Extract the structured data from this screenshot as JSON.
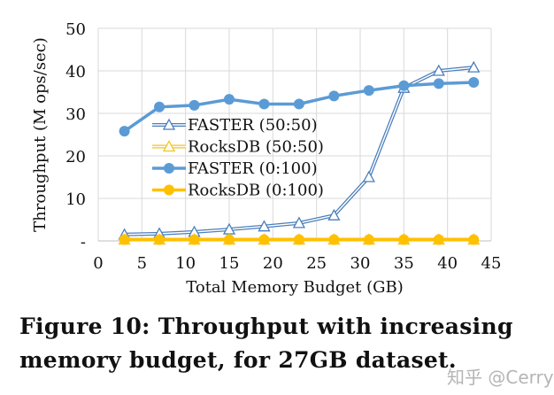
{
  "chart_data": {
    "type": "line",
    "title": "",
    "xlabel": "Total Memory Budget (GB)",
    "ylabel": "Throughput (M ops/sec)",
    "xlim": [
      0,
      45
    ],
    "ylim": [
      0,
      50
    ],
    "xticks": [
      "0",
      "5",
      "10",
      "15",
      "20",
      "25",
      "30",
      "35",
      "40",
      "45"
    ],
    "xtick_values": [
      0,
      5,
      10,
      15,
      20,
      25,
      30,
      35,
      40,
      45
    ],
    "yticks": [
      "-",
      "10",
      "20",
      "30",
      "40",
      "50"
    ],
    "ytick_values": [
      0,
      10,
      20,
      30,
      40,
      50
    ],
    "grid": true,
    "legend_position": "center-left",
    "x": [
      3,
      7,
      11,
      15,
      19,
      23,
      27,
      31,
      35,
      39,
      43
    ],
    "series": [
      {
        "name": "FASTER (50:50)",
        "color": "#4a7ebb",
        "marker": "triangle-open",
        "style": "double",
        "values": [
          1.5,
          1.7,
          2.1,
          2.7,
          3.4,
          4.2,
          6.0,
          15.0,
          36.0,
          40.0,
          40.8
        ]
      },
      {
        "name": "RocksDB (50:50)",
        "color": "#f5c518",
        "marker": "triangle-open",
        "style": "double",
        "values": [
          0.3,
          0.3,
          0.3,
          0.3,
          0.3,
          0.3,
          0.3,
          0.3,
          0.3,
          0.3,
          0.3
        ]
      },
      {
        "name": "FASTER (0:100)",
        "color": "#5b9bd5",
        "marker": "circle",
        "style": "solid",
        "values": [
          25.8,
          31.5,
          31.9,
          33.3,
          32.2,
          32.2,
          34.1,
          35.4,
          36.5,
          37.0,
          37.3
        ]
      },
      {
        "name": "RocksDB (0:100)",
        "color": "#ffc000",
        "marker": "circle",
        "style": "solid",
        "values": [
          0.3,
          0.3,
          0.3,
          0.3,
          0.3,
          0.3,
          0.3,
          0.3,
          0.3,
          0.3,
          0.3
        ]
      }
    ]
  },
  "caption": "Figure 10: Throughput with increasing memory budget, for 27GB dataset.",
  "watermark": "知乎 @Cerry"
}
